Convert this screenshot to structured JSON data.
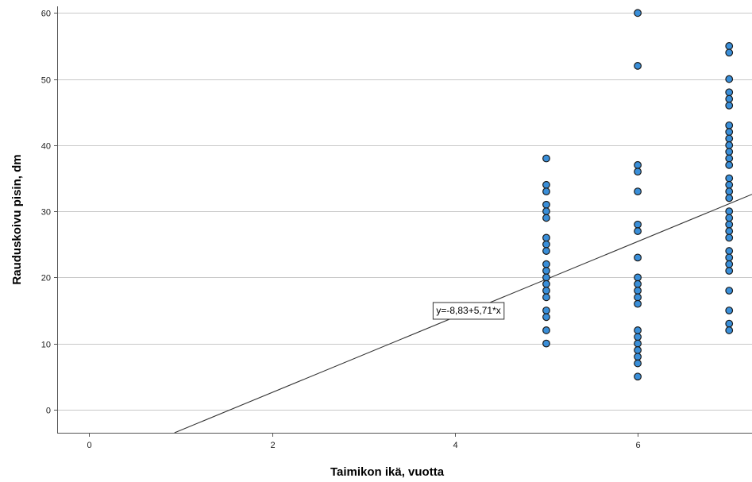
{
  "chart_data": {
    "type": "scatter",
    "title": "",
    "xlabel": "Taimikon ikä, vuotta",
    "ylabel": "Rauduskoivu pisin, dm",
    "xlim": [
      -0.35,
      7.25
    ],
    "ylim": [
      -3.5,
      61
    ],
    "x_ticks": [
      0,
      2,
      4,
      6
    ],
    "y_ticks": [
      0,
      10,
      20,
      30,
      40,
      50,
      60
    ],
    "grid": "horizontal",
    "point_color": "#3a8fd9",
    "point_edge_color": "#1a1a1a",
    "line_color": "#333333",
    "points": [
      {
        "x": 5,
        "y": 38
      },
      {
        "x": 5,
        "y": 34
      },
      {
        "x": 5,
        "y": 33
      },
      {
        "x": 5,
        "y": 31
      },
      {
        "x": 5,
        "y": 30
      },
      {
        "x": 5,
        "y": 29
      },
      {
        "x": 5,
        "y": 26
      },
      {
        "x": 5,
        "y": 25
      },
      {
        "x": 5,
        "y": 24
      },
      {
        "x": 5,
        "y": 22
      },
      {
        "x": 5,
        "y": 21
      },
      {
        "x": 5,
        "y": 20
      },
      {
        "x": 5,
        "y": 19
      },
      {
        "x": 5,
        "y": 18
      },
      {
        "x": 5,
        "y": 17
      },
      {
        "x": 5,
        "y": 15
      },
      {
        "x": 5,
        "y": 14
      },
      {
        "x": 5,
        "y": 12
      },
      {
        "x": 5,
        "y": 10
      },
      {
        "x": 6,
        "y": 60
      },
      {
        "x": 6,
        "y": 52
      },
      {
        "x": 6,
        "y": 37
      },
      {
        "x": 6,
        "y": 36
      },
      {
        "x": 6,
        "y": 33
      },
      {
        "x": 6,
        "y": 28
      },
      {
        "x": 6,
        "y": 27
      },
      {
        "x": 6,
        "y": 23
      },
      {
        "x": 6,
        "y": 20
      },
      {
        "x": 6,
        "y": 19
      },
      {
        "x": 6,
        "y": 18
      },
      {
        "x": 6,
        "y": 17
      },
      {
        "x": 6,
        "y": 16
      },
      {
        "x": 6,
        "y": 12
      },
      {
        "x": 6,
        "y": 11
      },
      {
        "x": 6,
        "y": 10
      },
      {
        "x": 6,
        "y": 9
      },
      {
        "x": 6,
        "y": 8
      },
      {
        "x": 6,
        "y": 7
      },
      {
        "x": 6,
        "y": 5
      },
      {
        "x": 7,
        "y": 55
      },
      {
        "x": 7,
        "y": 54
      },
      {
        "x": 7,
        "y": 50
      },
      {
        "x": 7,
        "y": 48
      },
      {
        "x": 7,
        "y": 47
      },
      {
        "x": 7,
        "y": 46
      },
      {
        "x": 7,
        "y": 43
      },
      {
        "x": 7,
        "y": 42
      },
      {
        "x": 7,
        "y": 41
      },
      {
        "x": 7,
        "y": 40
      },
      {
        "x": 7,
        "y": 39
      },
      {
        "x": 7,
        "y": 38
      },
      {
        "x": 7,
        "y": 37
      },
      {
        "x": 7,
        "y": 35
      },
      {
        "x": 7,
        "y": 34
      },
      {
        "x": 7,
        "y": 33
      },
      {
        "x": 7,
        "y": 32
      },
      {
        "x": 7,
        "y": 30
      },
      {
        "x": 7,
        "y": 29
      },
      {
        "x": 7,
        "y": 28
      },
      {
        "x": 7,
        "y": 27
      },
      {
        "x": 7,
        "y": 26
      },
      {
        "x": 7,
        "y": 24
      },
      {
        "x": 7,
        "y": 23
      },
      {
        "x": 7,
        "y": 22
      },
      {
        "x": 7,
        "y": 21
      },
      {
        "x": 7,
        "y": 18
      },
      {
        "x": 7,
        "y": 15
      },
      {
        "x": 7,
        "y": 13
      },
      {
        "x": 7,
        "y": 12
      }
    ],
    "fit_line": {
      "equation": "y=-8,83+5,71*x",
      "intercept": -8.83,
      "slope": 5.71,
      "label_x": 4.15,
      "label_y": 15
    }
  }
}
